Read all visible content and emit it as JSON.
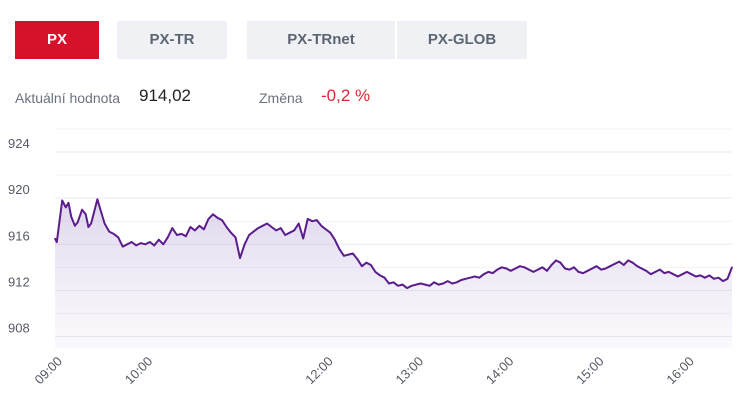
{
  "tabs": [
    {
      "label": "PX",
      "active": true
    },
    {
      "label": "PX-TR",
      "active": false
    },
    {
      "label": "PX-TRnet",
      "active": false
    },
    {
      "label": "PX-GLOB",
      "active": false
    }
  ],
  "summary": {
    "current_label": "Aktuální hodnota",
    "current_value": "914,02",
    "change_label": "Změna",
    "change_value": "-0,2 %"
  },
  "colors": {
    "accent": "#d6112a",
    "line": "#5b1d8c",
    "negative": "#e0273a"
  },
  "chart_data": {
    "type": "area",
    "ylim": [
      907,
      926
    ],
    "y_ticks": [
      908,
      912,
      916,
      920,
      924
    ],
    "y_tick_labels": [
      "908",
      "912",
      "916",
      "920",
      "924"
    ],
    "x_ticks": [
      9,
      10,
      12,
      13,
      14,
      15,
      16
    ],
    "x_tick_labels": [
      "09:00",
      "10:00",
      "12:00",
      "13:00",
      "14:00",
      "15:00",
      "16:00"
    ],
    "grid": true,
    "series": [
      {
        "x": [
          9.0,
          9.02,
          9.05,
          9.08,
          9.12,
          9.15,
          9.18,
          9.22,
          9.25,
          9.3,
          9.34,
          9.37,
          9.4,
          9.43,
          9.47,
          9.5,
          9.55,
          9.6,
          9.65,
          9.7,
          9.75,
          9.8,
          9.85,
          9.9,
          9.95,
          10.0,
          10.05,
          10.1,
          10.15,
          10.2,
          10.25,
          10.3,
          10.35,
          10.4,
          10.45,
          10.5,
          10.55,
          10.6,
          10.65,
          10.7,
          10.75,
          10.8,
          10.85,
          10.9,
          10.95,
          11.0,
          11.05,
          11.1,
          11.15,
          11.2,
          11.25,
          11.3,
          11.35,
          11.4,
          11.45,
          11.5,
          11.55,
          11.6,
          11.65,
          11.7,
          11.75,
          11.8,
          11.85,
          11.9,
          11.95,
          12.0,
          12.05,
          12.1,
          12.15,
          12.2,
          12.25,
          12.3,
          12.35,
          12.4,
          12.45,
          12.5,
          12.55,
          12.6,
          12.65,
          12.7,
          12.75,
          12.8,
          12.85,
          12.9,
          12.95,
          13.0,
          13.05,
          13.1,
          13.15,
          13.2,
          13.25,
          13.3,
          13.35,
          13.4,
          13.45,
          13.5,
          13.55,
          13.6,
          13.65,
          13.7,
          13.75,
          13.8,
          13.85,
          13.9,
          13.95,
          14.0,
          14.05,
          14.1,
          14.15,
          14.2,
          14.25,
          14.3,
          14.35,
          14.4,
          14.45,
          14.5,
          14.55,
          14.6,
          14.65,
          14.7,
          14.75,
          14.8,
          14.85,
          14.9,
          14.95,
          15.0,
          15.05,
          15.1,
          15.15,
          15.2,
          15.25,
          15.3,
          15.35,
          15.4,
          15.45,
          15.5,
          15.55,
          15.6,
          15.65,
          15.7,
          15.75,
          15.8,
          15.85,
          15.9,
          15.95,
          16.0,
          16.05,
          16.1,
          16.15,
          16.2,
          16.25,
          16.3,
          16.35,
          16.4,
          16.45,
          16.5
        ],
        "y": [
          916.5,
          916.2,
          918.0,
          919.8,
          919.2,
          919.6,
          918.4,
          917.6,
          917.9,
          919.0,
          918.6,
          917.5,
          917.8,
          918.7,
          919.9,
          919.1,
          917.8,
          917.1,
          916.9,
          916.6,
          915.8,
          916.0,
          916.2,
          915.9,
          916.1,
          916.0,
          916.2,
          915.9,
          916.4,
          916.0,
          916.6,
          917.4,
          916.8,
          916.9,
          916.7,
          917.5,
          917.2,
          917.6,
          917.3,
          918.2,
          918.6,
          918.3,
          918.1,
          917.5,
          917.0,
          916.6,
          914.8,
          916.0,
          916.8,
          917.1,
          917.4,
          917.6,
          917.8,
          917.5,
          917.2,
          917.4,
          916.8,
          917.0,
          917.2,
          917.8,
          916.5,
          918.2,
          918.0,
          918.1,
          917.6,
          917.3,
          917.0,
          916.4,
          915.6,
          915.0,
          915.1,
          915.2,
          914.7,
          914.1,
          914.4,
          914.2,
          913.6,
          913.3,
          913.1,
          912.6,
          912.7,
          912.4,
          912.5,
          912.2,
          912.4,
          912.5,
          912.6,
          912.5,
          912.4,
          912.7,
          912.5,
          912.6,
          912.8,
          912.6,
          912.7,
          912.9,
          913.0,
          913.1,
          913.2,
          913.1,
          913.4,
          913.6,
          913.5,
          913.8,
          914.0,
          913.9,
          913.7,
          913.9,
          914.1,
          914.0,
          913.8,
          913.6,
          913.8,
          914.0,
          913.7,
          914.2,
          914.6,
          914.4,
          913.9,
          913.8,
          914.0,
          913.6,
          913.5,
          913.7,
          913.9,
          914.1,
          913.8,
          913.9,
          914.1,
          914.3,
          914.5,
          914.2,
          914.6,
          914.4,
          914.1,
          913.9,
          913.7,
          913.4,
          913.6,
          913.8,
          913.5,
          913.6,
          913.4,
          913.2,
          913.4,
          913.6,
          913.4,
          913.2,
          913.3,
          913.1,
          913.3,
          913.0,
          913.1,
          912.8,
          913.0,
          914.0
        ]
      }
    ]
  }
}
